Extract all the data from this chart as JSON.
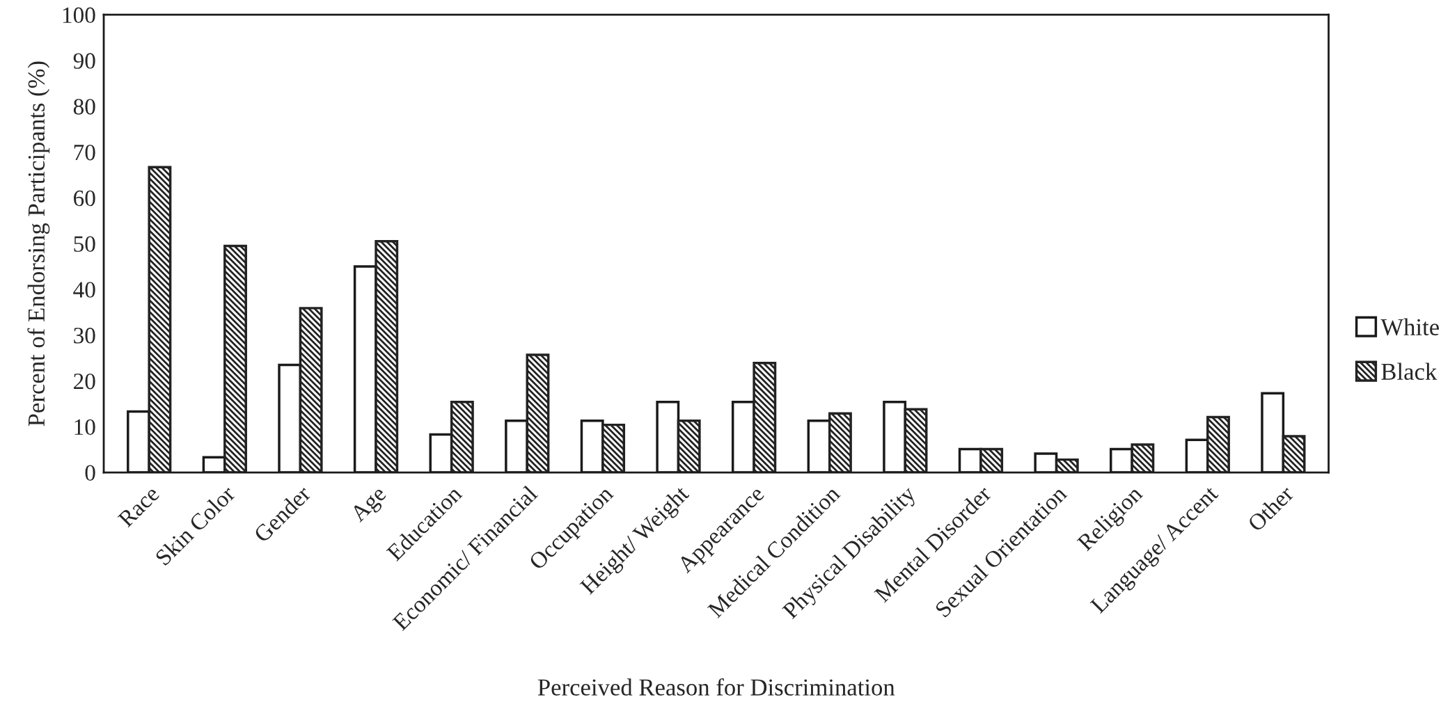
{
  "chart_data": {
    "type": "bar",
    "xlabel": "Perceived Reason for Discrimination",
    "ylabel": "Percent of Endorsing Participants (%)",
    "categories": [
      "Race",
      "Skin Color",
      "Gender",
      "Age",
      "Education",
      "Economic/ Financial",
      "Occupation",
      "Height/ Weight",
      "Appearance",
      "Medical Condition",
      "Physical Disability",
      "Mental Disorder",
      "Sexual Orientation",
      "Religion",
      "Language/ Accent",
      "Other"
    ],
    "series": [
      {
        "name": "White",
        "color": "#ffffff",
        "values": [
          13.3,
          3.3,
          23.5,
          45.0,
          8.3,
          11.3,
          11.3,
          15.4,
          15.4,
          11.3,
          15.4,
          5.1,
          4.1,
          5.1,
          7.1,
          17.3
        ]
      },
      {
        "name": "Black",
        "color": "#222222",
        "values": [
          66.7,
          49.5,
          35.9,
          50.5,
          15.4,
          25.7,
          10.4,
          11.3,
          23.9,
          12.9,
          13.8,
          5.1,
          2.8,
          6.1,
          12.1,
          7.9
        ]
      }
    ],
    "ylim": [
      0,
      100
    ],
    "yticks": [
      0,
      10,
      20,
      30,
      40,
      50,
      60,
      70,
      80,
      90,
      100
    ],
    "grid": false,
    "legend": "right"
  }
}
